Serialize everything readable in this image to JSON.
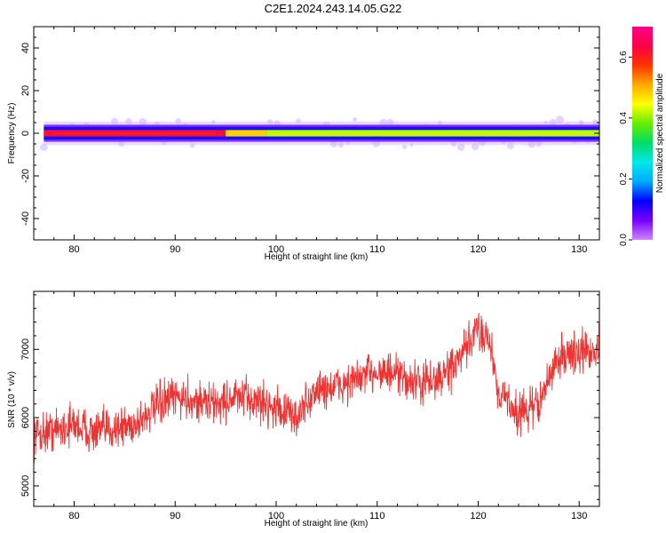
{
  "page": {
    "title": "C2E1.2024.243.14.05.G22"
  },
  "chart_data": [
    {
      "type": "heatmap",
      "xlabel": "Height of straight line (km)",
      "ylabel": "Frequency (Hz)",
      "xlim": [
        76,
        132
      ],
      "ylim": [
        -50,
        50
      ],
      "x_ticks": [
        80,
        90,
        100,
        110,
        120,
        130
      ],
      "y_ticks": [
        -40,
        -20,
        0,
        20,
        40
      ],
      "grid": false,
      "colorbar": {
        "label": "Normalized spectral amplitude",
        "range": [
          0.0,
          0.7
        ],
        "ticks": [
          0.0,
          0.2,
          0.4,
          0.6
        ],
        "colormap": [
          "#cc88ff",
          "#7700ff",
          "#0000ff",
          "#00aaff",
          "#00e8e8",
          "#00dd66",
          "#66ee00",
          "#ffff00",
          "#ffaa00",
          "#ff3300",
          "#ff0044",
          "#ff0088"
        ]
      },
      "band": {
        "center_hz": 0,
        "core_halfwidth_hz": 1.5,
        "outer_halfwidth_hz": 4,
        "segments": [
          {
            "x": [
              77,
              95
            ],
            "amplitude": 0.62
          },
          {
            "x": [
              95,
              99
            ],
            "amplitude": 0.48
          },
          {
            "x": [
              99,
              132
            ],
            "amplitude": 0.42
          }
        ]
      }
    },
    {
      "type": "line",
      "xlabel": "Height of straight line (km)",
      "ylabel": "SNR (10 * v/v)",
      "xlim": [
        76,
        132
      ],
      "ylim": [
        4700,
        7850
      ],
      "x_ticks": [
        80,
        90,
        100,
        110,
        120,
        130
      ],
      "y_ticks": [
        5000,
        6000,
        7000
      ],
      "grid": false,
      "series": [
        {
          "color": "#ee3333",
          "x": [
            76,
            78,
            80,
            82,
            84,
            86,
            88,
            90,
            92,
            94,
            96,
            98,
            100,
            102,
            104,
            106,
            108,
            110,
            112,
            114,
            116,
            118,
            120,
            121,
            122,
            124,
            126,
            128,
            130,
            132
          ],
          "y": [
            5750,
            5820,
            5900,
            5780,
            5850,
            5900,
            6150,
            6300,
            6250,
            6200,
            6300,
            6250,
            6150,
            6000,
            6400,
            6450,
            6550,
            6700,
            6600,
            6500,
            6550,
            6800,
            7300,
            7200,
            6400,
            6050,
            6200,
            6900,
            6950,
            7000
          ],
          "noise_amplitude": 450
        }
      ]
    }
  ]
}
